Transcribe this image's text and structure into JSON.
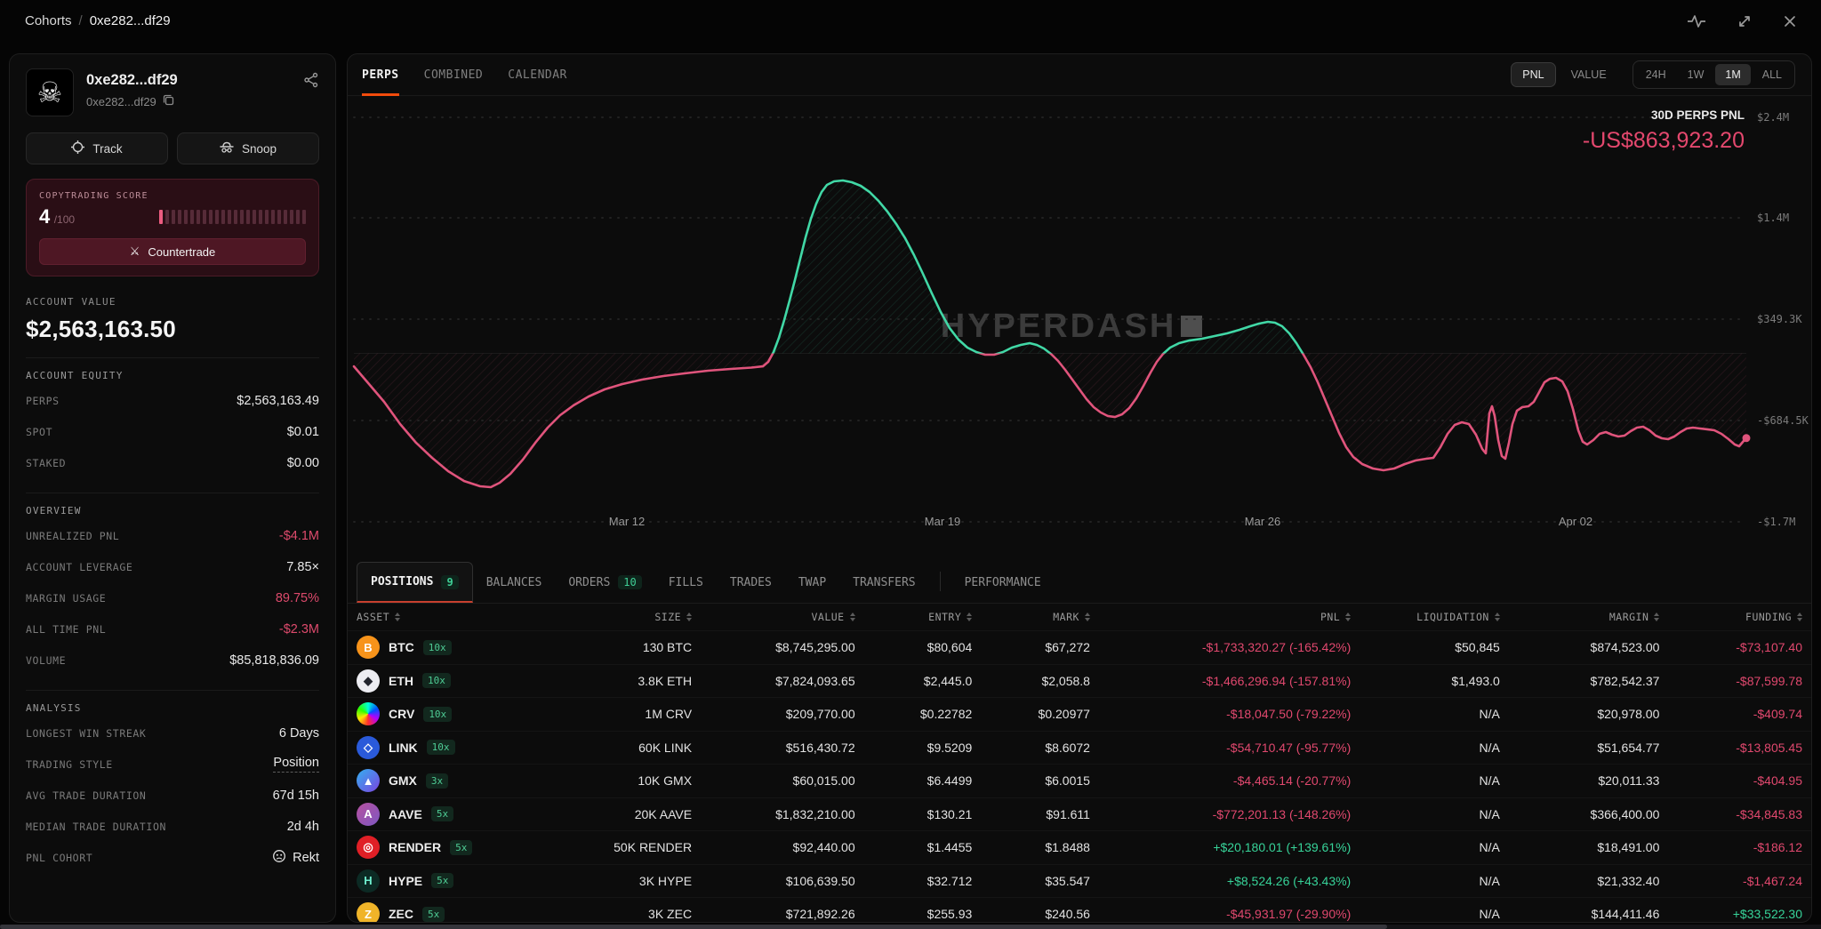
{
  "topbar": {
    "breadcrumb_root": "Cohorts",
    "breadcrumb_sep": "/",
    "breadcrumb_current": "0xe282...df29"
  },
  "profile": {
    "name": "0xe282...df29",
    "address": "0xe282...df29",
    "avatar_glyph": "☠",
    "track_label": "Track",
    "snoop_label": "Snoop"
  },
  "copytrading": {
    "label": "COPYTRADING SCORE",
    "score": "4",
    "max": "/100",
    "bars_total": 24,
    "bars_filled": 1,
    "button_label": "Countertrade",
    "button_icon": "⚔"
  },
  "account_value": {
    "label": "ACCOUNT VALUE",
    "value": "$2,563,163.50"
  },
  "sections": [
    {
      "title": "ACCOUNT EQUITY",
      "rows": [
        {
          "label": "PERPS",
          "value": "$2,563,163.49"
        },
        {
          "label": "SPOT",
          "value": "$0.01"
        },
        {
          "label": "STAKED",
          "value": "$0.00"
        }
      ]
    },
    {
      "title": "OVERVIEW",
      "rows": [
        {
          "label": "UNREALIZED PNL",
          "value": "-$4.1M",
          "tone": "red"
        },
        {
          "label": "ACCOUNT LEVERAGE",
          "value": "7.85×"
        },
        {
          "label": "MARGIN USAGE",
          "value": "89.75%",
          "tone": "red"
        },
        {
          "label": "ALL TIME PNL",
          "value": "-$2.3M",
          "tone": "red"
        },
        {
          "label": "VOLUME",
          "value": "$85,818,836.09"
        }
      ]
    },
    {
      "title": "ANALYSIS",
      "rows": [
        {
          "label": "LONGEST WIN STREAK",
          "value": "6 Days"
        },
        {
          "label": "TRADING STYLE",
          "value": "Position",
          "dashed": true
        },
        {
          "label": "AVG TRADE DURATION",
          "value": "67d 15h"
        },
        {
          "label": "MEDIAN TRADE DURATION",
          "value": "2d 4h"
        },
        {
          "label": "PNL COHORT",
          "value": "Rekt",
          "icon": "rekt"
        }
      ]
    }
  ],
  "chart": {
    "tabs": [
      {
        "label": "PERPS",
        "active": true
      },
      {
        "label": "COMBINED"
      },
      {
        "label": "CALENDAR"
      }
    ],
    "mode_toggle": [
      {
        "label": "PNL",
        "active": true
      },
      {
        "label": "VALUE"
      }
    ],
    "ranges": [
      {
        "label": "24H"
      },
      {
        "label": "1W"
      },
      {
        "label": "1M",
        "active": true
      },
      {
        "label": "ALL"
      }
    ],
    "headline_label": "30D PERPS PNL",
    "headline_value": "-US$863,923.20",
    "watermark": "HYPERDASH",
    "colors": {
      "positive": "#41d8a6",
      "negative": "#e0547c",
      "accent": "#f24b0c",
      "headline_value": "#e4486e"
    }
  },
  "chart_data": {
    "type": "line",
    "title": "30D Perps PNL",
    "series_name": "Perps PNL",
    "unit": "USD (thousands)",
    "ylim": [
      -1700000,
      2400000
    ],
    "y_tick_labels": [
      "$2.4M",
      "$1.4M",
      "$349.3K",
      "-$684.5K",
      "-$1.7M"
    ],
    "y_tick_values": [
      2400000,
      1400000,
      349300,
      -684500,
      -1700000
    ],
    "x_tick_labels": [
      "Mar 12",
      "Mar 19",
      "Mar 26",
      "Apr 02"
    ],
    "final_value": -863923.2,
    "grid": true,
    "legend": false,
    "points_k": [
      [
        398,
        -132
      ],
      [
        415,
        -313
      ],
      [
        432,
        -494
      ],
      [
        450,
        -721
      ],
      [
        468,
        -912
      ],
      [
        486,
        -1066
      ],
      [
        504,
        -1202
      ],
      [
        522,
        -1302
      ],
      [
        540,
        -1356
      ],
      [
        552,
        -1365
      ],
      [
        562,
        -1320
      ],
      [
        574,
        -1229
      ],
      [
        588,
        -1084
      ],
      [
        602,
        -912
      ],
      [
        616,
        -757
      ],
      [
        630,
        -630
      ],
      [
        645,
        -531
      ],
      [
        662,
        -440
      ],
      [
        680,
        -367
      ],
      [
        700,
        -313
      ],
      [
        722,
        -268
      ],
      [
        746,
        -231
      ],
      [
        770,
        -204
      ],
      [
        796,
        -177
      ],
      [
        822,
        -159
      ],
      [
        845,
        -145
      ],
      [
        858,
        -132
      ],
      [
        864,
        -86
      ],
      [
        870,
        14
      ],
      [
        876,
        159
      ],
      [
        882,
        340
      ],
      [
        888,
        540
      ],
      [
        894,
        748
      ],
      [
        900,
        966
      ],
      [
        906,
        1184
      ],
      [
        912,
        1374
      ],
      [
        918,
        1528
      ],
      [
        924,
        1646
      ],
      [
        930,
        1719
      ],
      [
        938,
        1755
      ],
      [
        948,
        1764
      ],
      [
        958,
        1746
      ],
      [
        968,
        1710
      ],
      [
        978,
        1646
      ],
      [
        988,
        1556
      ],
      [
        998,
        1447
      ],
      [
        1008,
        1320
      ],
      [
        1018,
        1175
      ],
      [
        1028,
        1002
      ],
      [
        1038,
        812
      ],
      [
        1048,
        612
      ],
      [
        1058,
        422
      ],
      [
        1068,
        258
      ],
      [
        1078,
        141
      ],
      [
        1088,
        59
      ],
      [
        1098,
        14
      ],
      [
        1108,
        -14
      ],
      [
        1118,
        -14
      ],
      [
        1128,
        14
      ],
      [
        1138,
        59
      ],
      [
        1148,
        86
      ],
      [
        1158,
        104
      ],
      [
        1166,
        86
      ],
      [
        1174,
        50
      ],
      [
        1182,
        -5
      ],
      [
        1190,
        -77
      ],
      [
        1198,
        -168
      ],
      [
        1206,
        -268
      ],
      [
        1214,
        -367
      ],
      [
        1222,
        -467
      ],
      [
        1230,
        -549
      ],
      [
        1238,
        -603
      ],
      [
        1246,
        -639
      ],
      [
        1254,
        -649
      ],
      [
        1262,
        -621
      ],
      [
        1270,
        -558
      ],
      [
        1278,
        -458
      ],
      [
        1286,
        -331
      ],
      [
        1294,
        -195
      ],
      [
        1301,
        -86
      ],
      [
        1308,
        -5
      ],
      [
        1316,
        59
      ],
      [
        1326,
        104
      ],
      [
        1338,
        132
      ],
      [
        1352,
        150
      ],
      [
        1366,
        177
      ],
      [
        1380,
        204
      ],
      [
        1394,
        240
      ],
      [
        1406,
        277
      ],
      [
        1416,
        304
      ],
      [
        1426,
        322
      ],
      [
        1434,
        313
      ],
      [
        1442,
        277
      ],
      [
        1450,
        204
      ],
      [
        1458,
        104
      ],
      [
        1466,
        -14
      ],
      [
        1474,
        -141
      ],
      [
        1482,
        -295
      ],
      [
        1490,
        -467
      ],
      [
        1498,
        -639
      ],
      [
        1506,
        -812
      ],
      [
        1514,
        -957
      ],
      [
        1522,
        -1057
      ],
      [
        1532,
        -1129
      ],
      [
        1544,
        -1175
      ],
      [
        1556,
        -1193
      ],
      [
        1568,
        -1175
      ],
      [
        1580,
        -1129
      ],
      [
        1592,
        -1093
      ],
      [
        1604,
        -1075
      ],
      [
        1612,
        -1066
      ],
      [
        1620,
        -957
      ],
      [
        1628,
        -821
      ],
      [
        1636,
        -730
      ],
      [
        1644,
        -703
      ],
      [
        1652,
        -721
      ],
      [
        1660,
        -830
      ],
      [
        1667,
        -975
      ],
      [
        1671,
        -1020
      ],
      [
        1675,
        -612
      ],
      [
        1678,
        -540
      ],
      [
        1681,
        -639
      ],
      [
        1685,
        -884
      ],
      [
        1689,
        -1048
      ],
      [
        1693,
        -1075
      ],
      [
        1697,
        -912
      ],
      [
        1701,
        -721
      ],
      [
        1706,
        -585
      ],
      [
        1712,
        -549
      ],
      [
        1719,
        -540
      ],
      [
        1725,
        -494
      ],
      [
        1731,
        -395
      ],
      [
        1737,
        -295
      ],
      [
        1743,
        -259
      ],
      [
        1750,
        -249
      ],
      [
        1757,
        -286
      ],
      [
        1763,
        -386
      ],
      [
        1769,
        -567
      ],
      [
        1775,
        -785
      ],
      [
        1780,
        -902
      ],
      [
        1785,
        -930
      ],
      [
        1792,
        -884
      ],
      [
        1799,
        -821
      ],
      [
        1806,
        -803
      ],
      [
        1813,
        -830
      ],
      [
        1820,
        -848
      ],
      [
        1827,
        -839
      ],
      [
        1834,
        -794
      ],
      [
        1841,
        -757
      ],
      [
        1848,
        -748
      ],
      [
        1855,
        -785
      ],
      [
        1862,
        -839
      ],
      [
        1869,
        -866
      ],
      [
        1876,
        -875
      ],
      [
        1883,
        -848
      ],
      [
        1890,
        -803
      ],
      [
        1897,
        -766
      ],
      [
        1904,
        -757
      ],
      [
        1912,
        -766
      ],
      [
        1920,
        -775
      ],
      [
        1928,
        -785
      ],
      [
        1936,
        -821
      ],
      [
        1944,
        -875
      ],
      [
        1951,
        -930
      ],
      [
        1956,
        -948
      ],
      [
        1961,
        -893
      ],
      [
        1964,
        -864
      ]
    ]
  },
  "positions_tabs": [
    {
      "label": "POSITIONS",
      "badge": "9",
      "active": true
    },
    {
      "label": "BALANCES"
    },
    {
      "label": "ORDERS",
      "badge": "10"
    },
    {
      "label": "FILLS"
    },
    {
      "label": "TRADES"
    },
    {
      "label": "TWAP"
    },
    {
      "label": "TRANSFERS"
    },
    {
      "divider": true
    },
    {
      "label": "PERFORMANCE"
    }
  ],
  "table": {
    "columns": [
      "ASSET",
      "SIZE",
      "VALUE",
      "ENTRY",
      "MARK",
      "PNL",
      "LIQUIDATION",
      "MARGIN",
      "FUNDING"
    ],
    "rows": [
      {
        "asset": "BTC",
        "lev": "10x",
        "size": "130 BTC",
        "value": "$8,745,295.00",
        "entry": "$80,604",
        "mark": "$67,272",
        "pnl": "-$1,733,320.27 (-165.42%)",
        "pnl_pos": false,
        "liq": "$50,845",
        "margin": "$874,523.00",
        "funding": "-$73,107.40",
        "funding_pos": false
      },
      {
        "asset": "ETH",
        "lev": "10x",
        "size": "3.8K ETH",
        "value": "$7,824,093.65",
        "entry": "$2,445.0",
        "mark": "$2,058.8",
        "pnl": "-$1,466,296.94 (-157.81%)",
        "pnl_pos": false,
        "liq": "$1,493.0",
        "margin": "$782,542.37",
        "funding": "-$87,599.78",
        "funding_pos": false
      },
      {
        "asset": "CRV",
        "lev": "10x",
        "size": "1M CRV",
        "value": "$209,770.00",
        "entry": "$0.22782",
        "mark": "$0.20977",
        "pnl": "-$18,047.50 (-79.22%)",
        "pnl_pos": false,
        "liq": "N/A",
        "margin": "$20,978.00",
        "funding": "-$409.74",
        "funding_pos": false
      },
      {
        "asset": "LINK",
        "lev": "10x",
        "size": "60K LINK",
        "value": "$516,430.72",
        "entry": "$9.5209",
        "mark": "$8.6072",
        "pnl": "-$54,710.47 (-95.77%)",
        "pnl_pos": false,
        "liq": "N/A",
        "margin": "$51,654.77",
        "funding": "-$13,805.45",
        "funding_pos": false
      },
      {
        "asset": "GMX",
        "lev": "3x",
        "size": "10K GMX",
        "value": "$60,015.00",
        "entry": "$6.4499",
        "mark": "$6.0015",
        "pnl": "-$4,465.14 (-20.77%)",
        "pnl_pos": false,
        "liq": "N/A",
        "margin": "$20,011.33",
        "funding": "-$404.95",
        "funding_pos": false
      },
      {
        "asset": "AAVE",
        "lev": "5x",
        "size": "20K AAVE",
        "value": "$1,832,210.00",
        "entry": "$130.21",
        "mark": "$91.611",
        "pnl": "-$772,201.13 (-148.26%)",
        "pnl_pos": false,
        "liq": "N/A",
        "margin": "$366,400.00",
        "funding": "-$34,845.83",
        "funding_pos": false
      },
      {
        "asset": "RENDER",
        "lev": "5x",
        "size": "50K RENDER",
        "value": "$92,440.00",
        "entry": "$1.4455",
        "mark": "$1.8488",
        "pnl": "+$20,180.01 (+139.61%)",
        "pnl_pos": true,
        "liq": "N/A",
        "margin": "$18,491.00",
        "funding": "-$186.12",
        "funding_pos": false
      },
      {
        "asset": "HYPE",
        "lev": "5x",
        "size": "3K HYPE",
        "value": "$106,639.50",
        "entry": "$32.712",
        "mark": "$35.547",
        "pnl": "+$8,524.26 (+43.43%)",
        "pnl_pos": true,
        "liq": "N/A",
        "margin": "$21,332.40",
        "funding": "-$1,467.24",
        "funding_pos": false
      },
      {
        "asset": "ZEC",
        "lev": "5x",
        "size": "3K ZEC",
        "value": "$721,892.26",
        "entry": "$255.93",
        "mark": "$240.56",
        "pnl": "-$45,931.97 (-29.90%)",
        "pnl_pos": false,
        "liq": "N/A",
        "margin": "$144,411.46",
        "funding": "+$33,522.30",
        "funding_pos": true
      }
    ]
  },
  "asset_icons": {
    "BTC": {
      "glyph": "B",
      "fg": "#ffffff",
      "bg": "#f7931a"
    },
    "ETH": {
      "glyph": "◆",
      "fg": "#23252e",
      "bg": "#ededf2"
    },
    "CRV": {
      "glyph": "",
      "fg": "#ffffff",
      "bg": "conic-gradient(from 180deg,#ff2d2d,#ffe600,#2bff00,#00ffd5,#0051ff,#b300ff,#ff2d2d)"
    },
    "LINK": {
      "glyph": "◇",
      "fg": "#ffffff",
      "bg": "#2a5ada"
    },
    "GMX": {
      "glyph": "▲",
      "fg": "#ffffff",
      "bg": "linear-gradient(135deg,#33b0f0,#7b44e0)"
    },
    "AAVE": {
      "glyph": "A",
      "fg": "#ffffff",
      "bg": "linear-gradient(135deg,#b6509e,#7e57c2)"
    },
    "RENDER": {
      "glyph": "◎",
      "fg": "#ffffff",
      "bg": "#e01f26"
    },
    "HYPE": {
      "glyph": "H",
      "fg": "#6ff0cf",
      "bg": "#0c2a24"
    },
    "ZEC": {
      "glyph": "Z",
      "fg": "#ffffff",
      "bg": "#f0b429"
    }
  }
}
